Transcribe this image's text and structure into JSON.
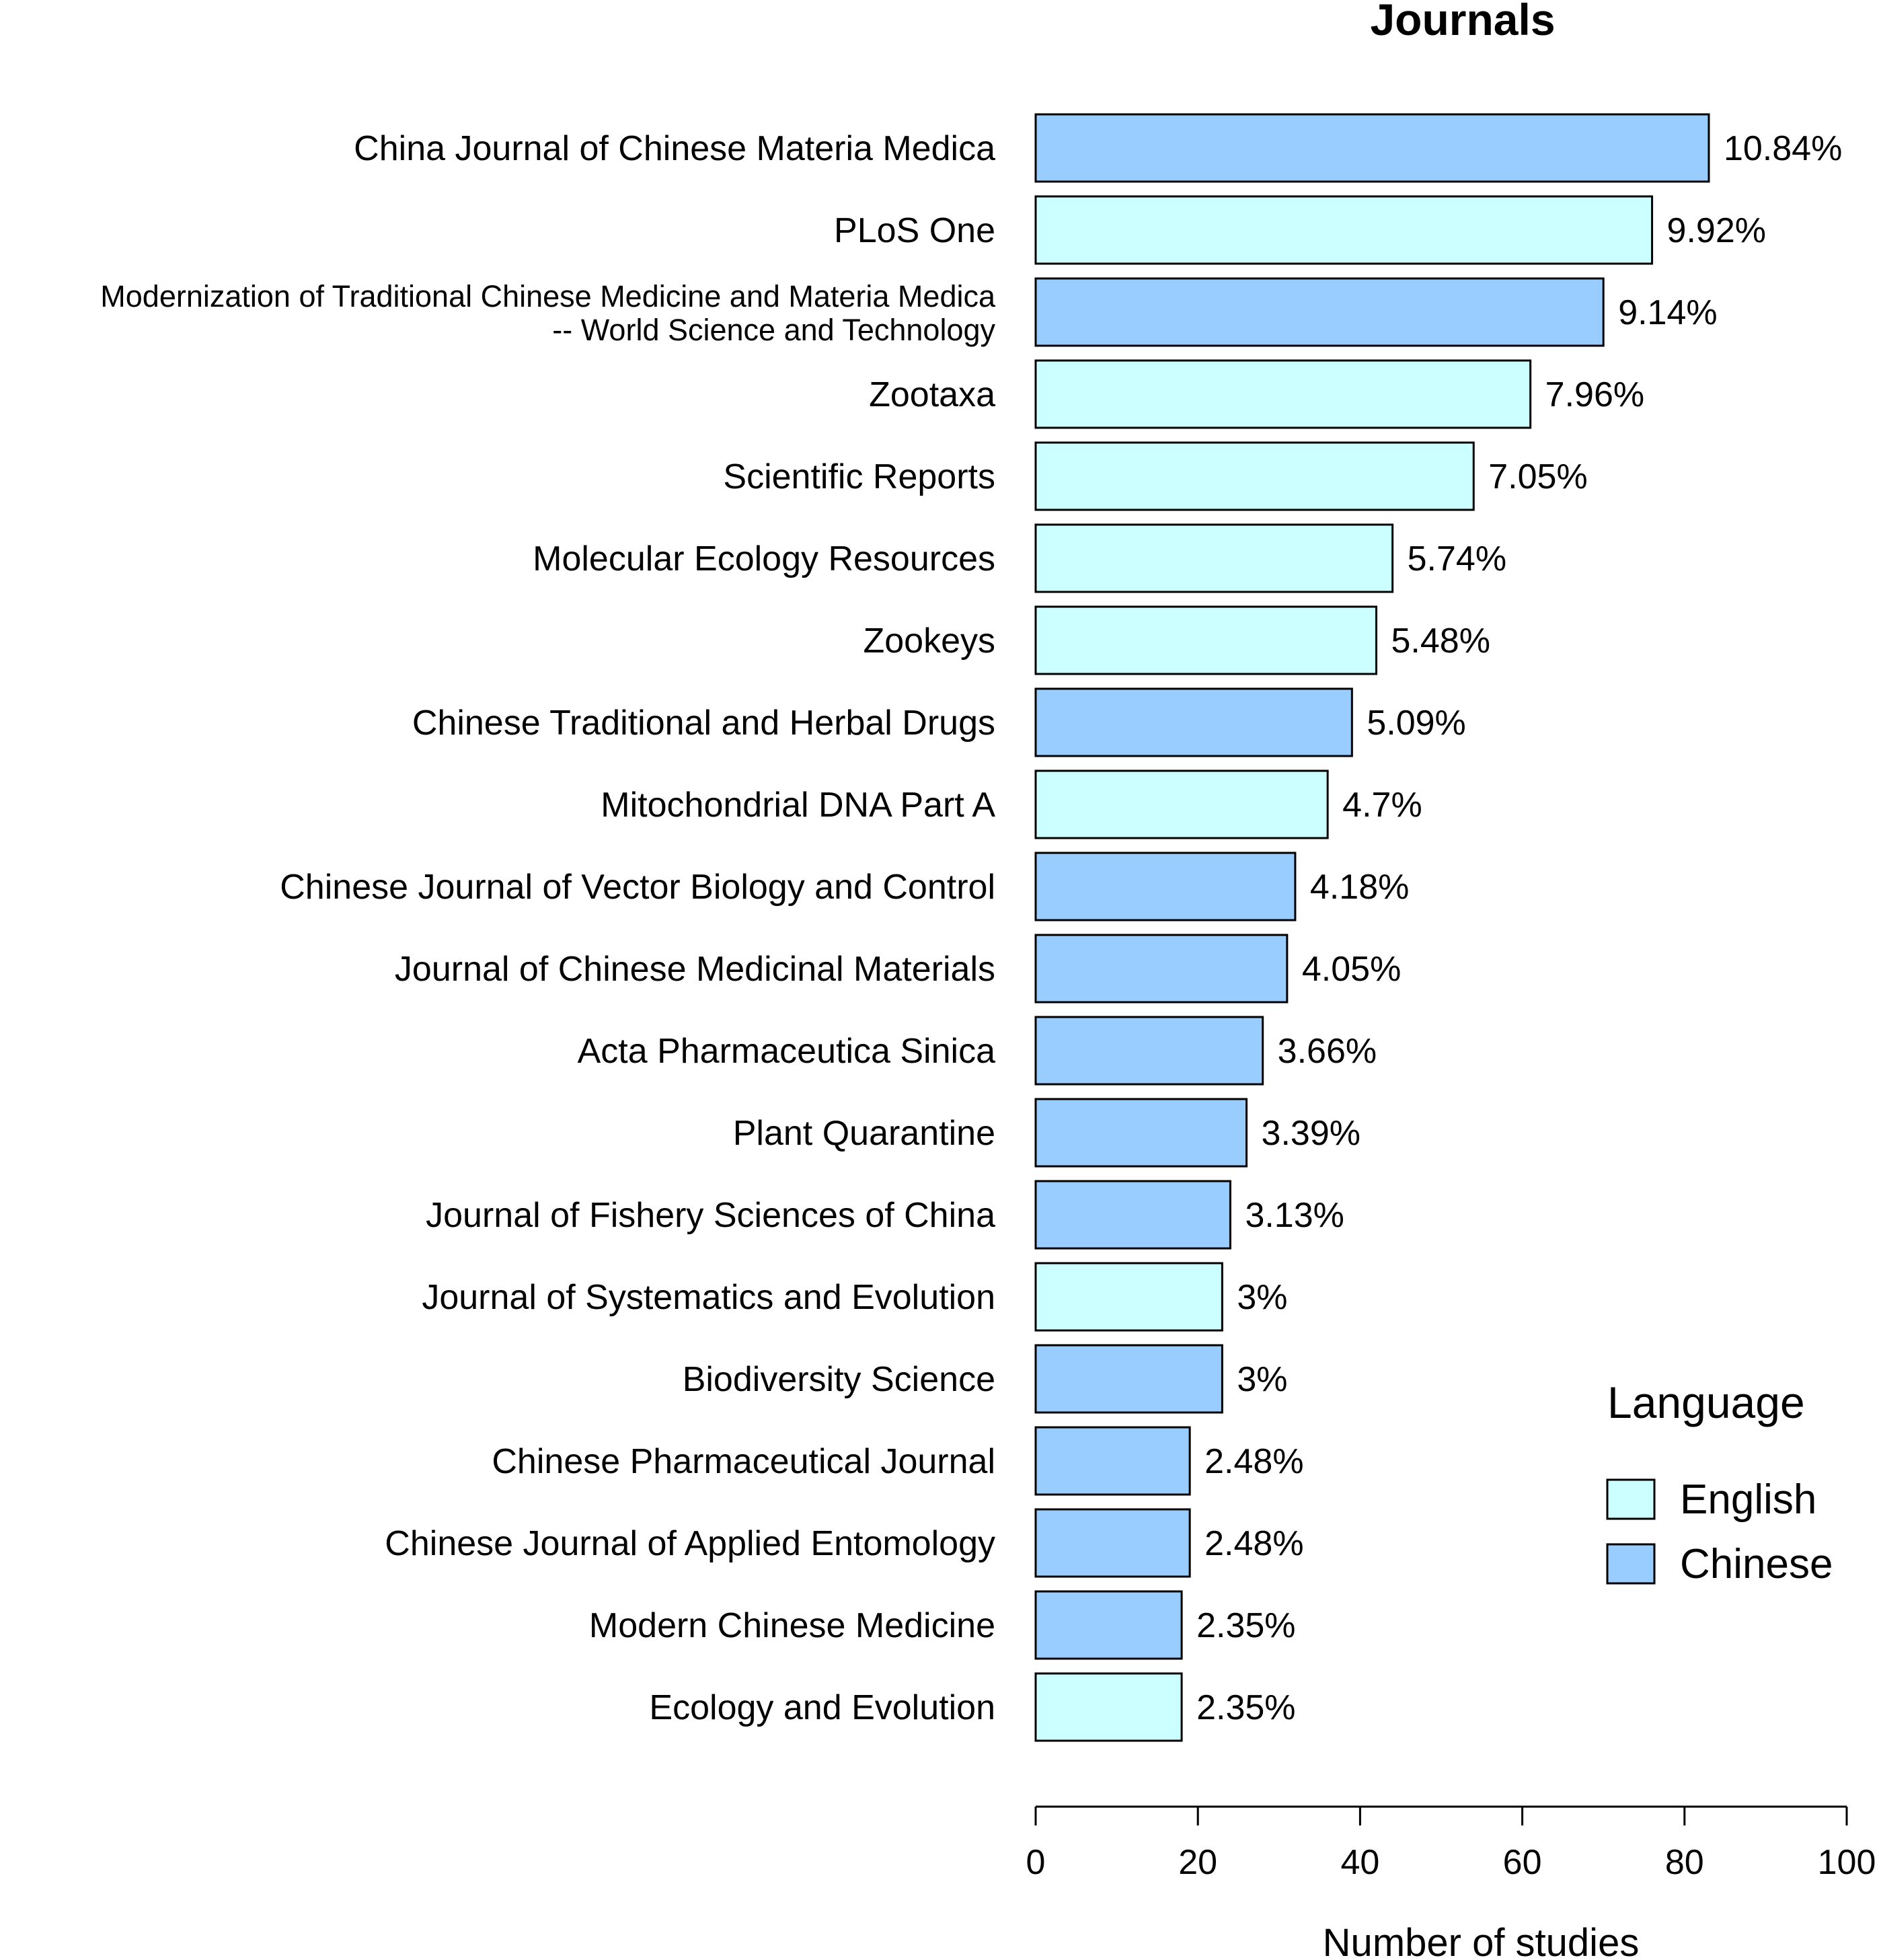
{
  "chart_data": {
    "type": "bar",
    "orientation": "horizontal",
    "title": "Journals",
    "xlabel": "Number of studies",
    "ylabel": "",
    "xlim": [
      0,
      100
    ],
    "xticks": [
      0,
      20,
      40,
      60,
      80,
      100
    ],
    "grid": false,
    "legend": {
      "title": "Language",
      "position": "bottom-right",
      "entries": [
        {
          "name": "English",
          "color": "#CCFFFF"
        },
        {
          "name": "Chinese",
          "color": "#99CCFF"
        }
      ]
    },
    "categories": [
      {
        "lines": [
          "China Journal of Chinese Materia Medica"
        ],
        "value": 83,
        "label": "10.84%",
        "language": "Chinese"
      },
      {
        "lines": [
          "PLoS One"
        ],
        "value": 76,
        "label": "9.92%",
        "language": "English"
      },
      {
        "lines": [
          "Modernization of Traditional Chinese Medicine and Materia Medica",
          "-- World Science and Technology"
        ],
        "value": 70,
        "label": "9.14%",
        "language": "Chinese"
      },
      {
        "lines": [
          "Zootaxa"
        ],
        "value": 61,
        "label": "7.96%",
        "language": "English"
      },
      {
        "lines": [
          "Scientific Reports"
        ],
        "value": 54,
        "label": "7.05%",
        "language": "English"
      },
      {
        "lines": [
          "Molecular Ecology Resources"
        ],
        "value": 44,
        "label": "5.74%",
        "language": "English"
      },
      {
        "lines": [
          "Zookeys"
        ],
        "value": 42,
        "label": "5.48%",
        "language": "English"
      },
      {
        "lines": [
          "Chinese Traditional and Herbal Drugs"
        ],
        "value": 39,
        "label": "5.09%",
        "language": "Chinese"
      },
      {
        "lines": [
          "Mitochondrial DNA Part A"
        ],
        "value": 36,
        "label": "4.7%",
        "language": "English"
      },
      {
        "lines": [
          "Chinese Journal of Vector Biology and Control"
        ],
        "value": 32,
        "label": "4.18%",
        "language": "Chinese"
      },
      {
        "lines": [
          "Journal of Chinese Medicinal Materials"
        ],
        "value": 31,
        "label": "4.05%",
        "language": "Chinese"
      },
      {
        "lines": [
          "Acta Pharmaceutica Sinica"
        ],
        "value": 28,
        "label": "3.66%",
        "language": "Chinese"
      },
      {
        "lines": [
          "Plant Quarantine"
        ],
        "value": 26,
        "label": "3.39%",
        "language": "Chinese"
      },
      {
        "lines": [
          "Journal of Fishery Sciences of China"
        ],
        "value": 24,
        "label": "3.13%",
        "language": "Chinese"
      },
      {
        "lines": [
          "Journal of Systematics and Evolution"
        ],
        "value": 23,
        "label": "3%",
        "language": "English"
      },
      {
        "lines": [
          "Biodiversity Science"
        ],
        "value": 23,
        "label": "3%",
        "language": "Chinese"
      },
      {
        "lines": [
          "Chinese Pharmaceutical Journal"
        ],
        "value": 19,
        "label": "2.48%",
        "language": "Chinese"
      },
      {
        "lines": [
          "Chinese Journal of Applied Entomology"
        ],
        "value": 19,
        "label": "2.48%",
        "language": "Chinese"
      },
      {
        "lines": [
          "Modern Chinese Medicine"
        ],
        "value": 18,
        "label": "2.35%",
        "language": "Chinese"
      },
      {
        "lines": [
          "Ecology and Evolution"
        ],
        "value": 18,
        "label": "2.35%",
        "language": "English"
      }
    ]
  }
}
